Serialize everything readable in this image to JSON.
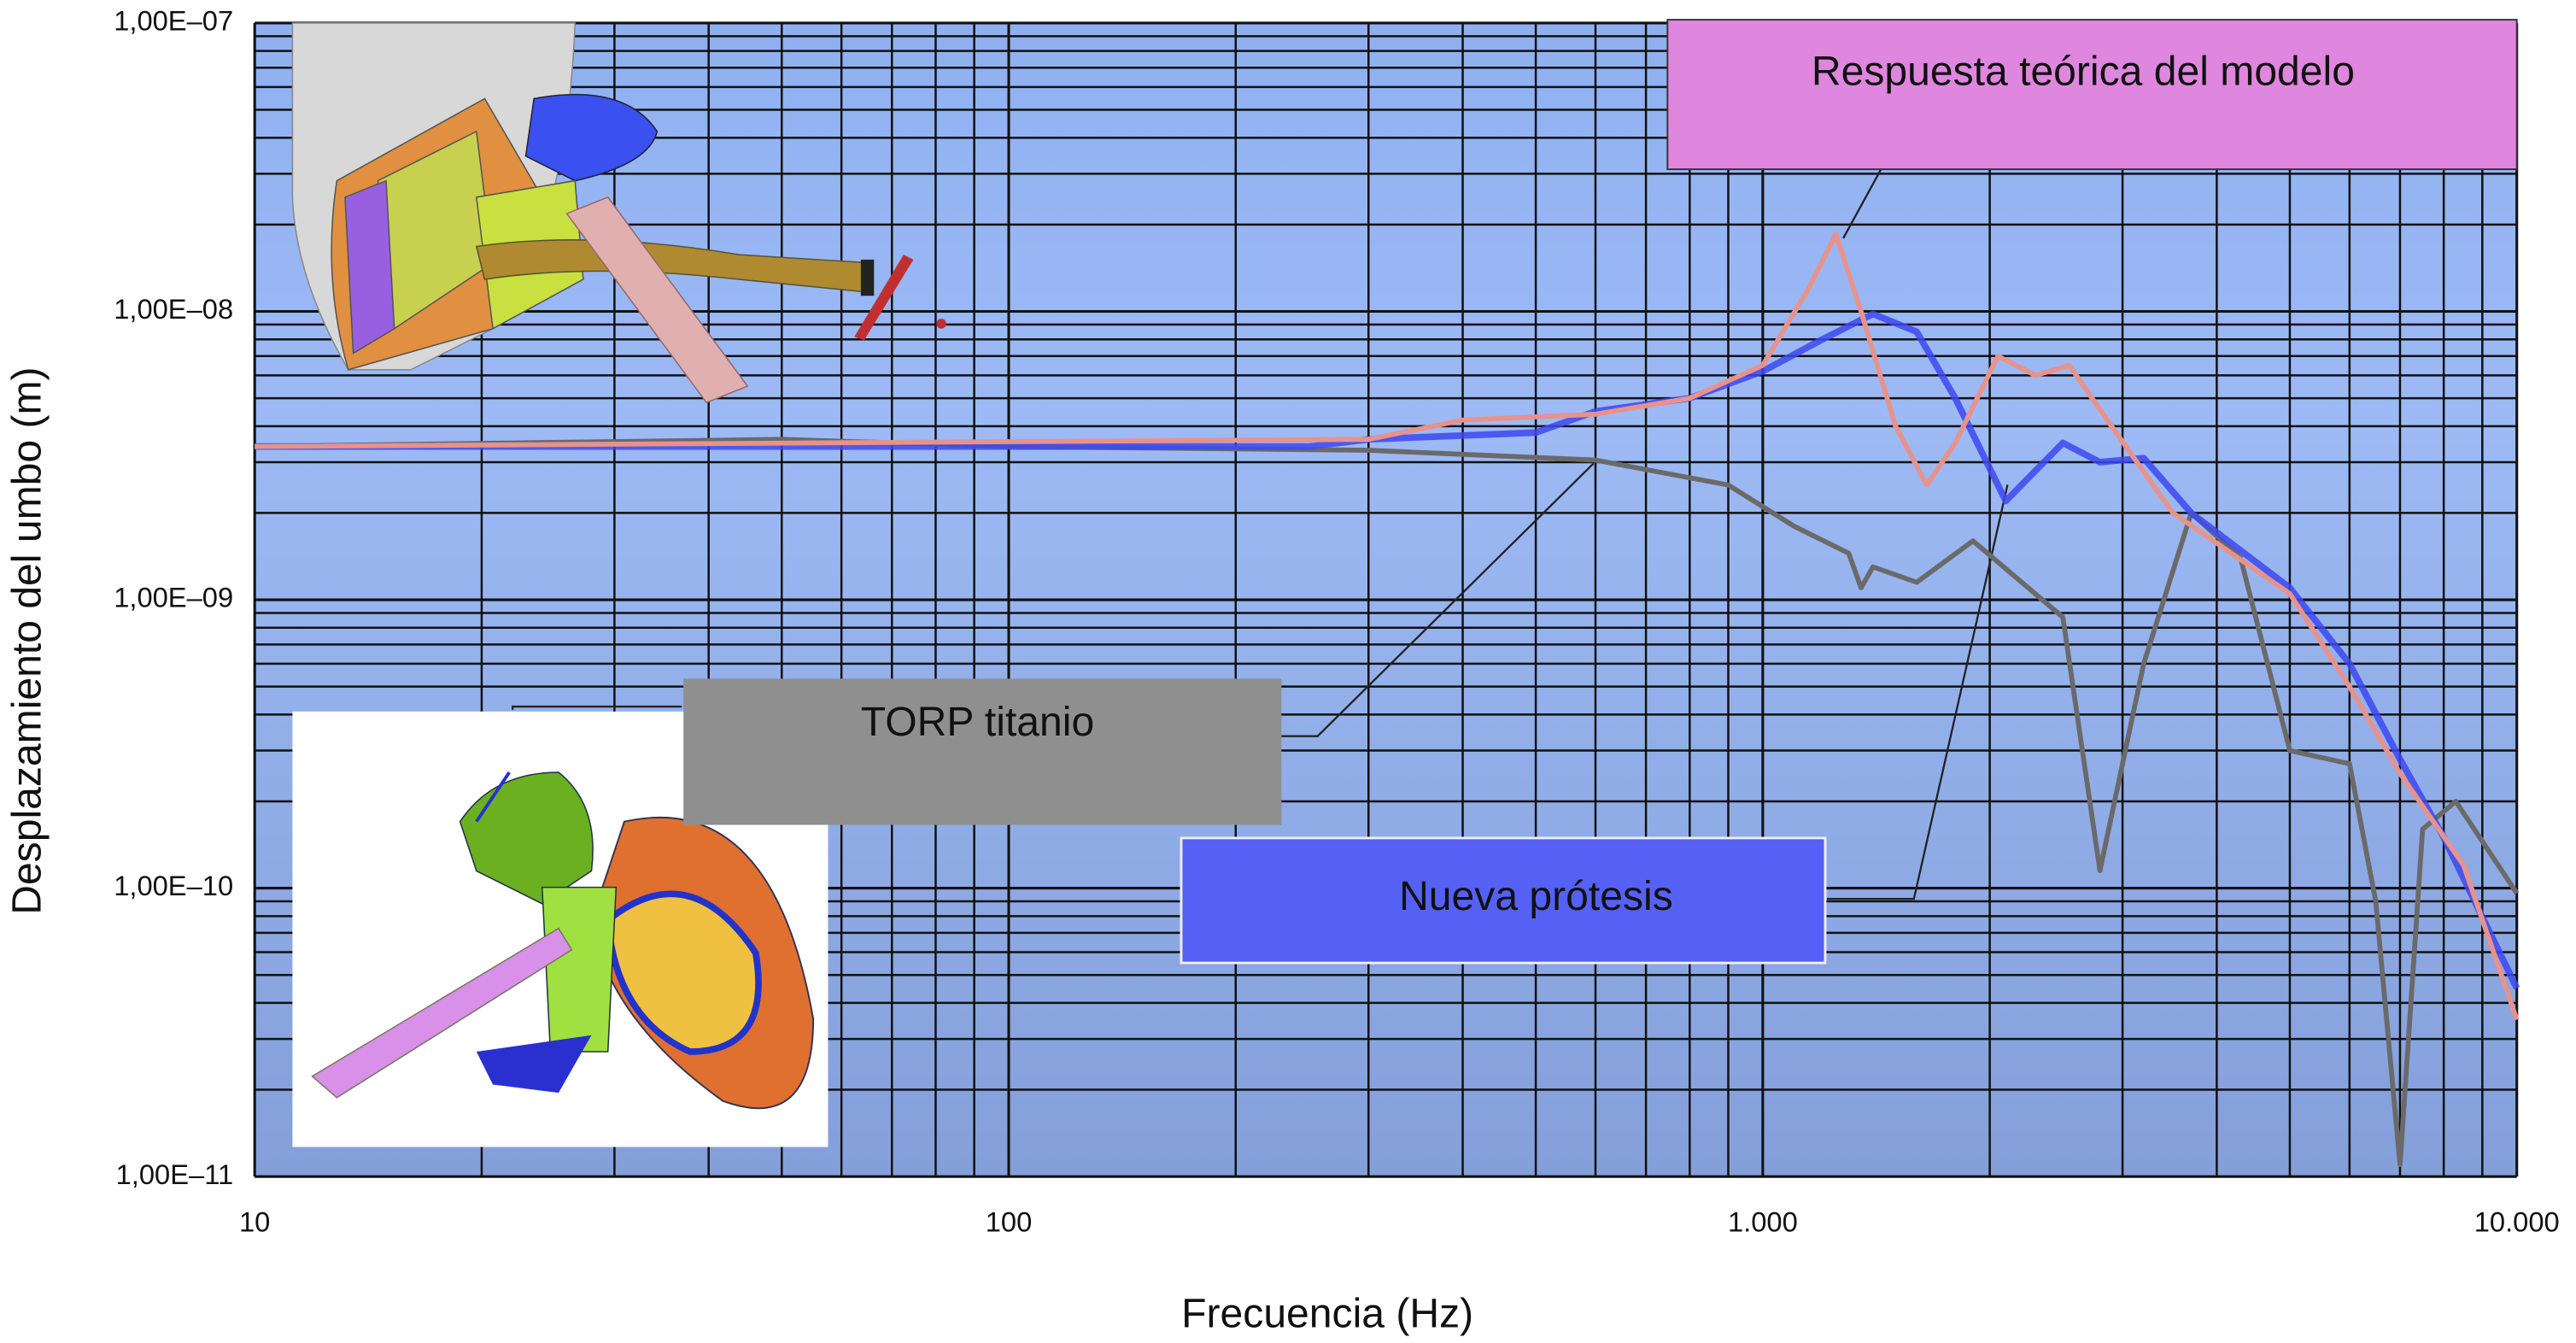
{
  "chart_data": {
    "type": "line",
    "xlabel": "Frecuencia (Hz)",
    "ylabel": "Desplazamiento del umbo (m)",
    "xscale": "log",
    "yscale": "log",
    "grid": true,
    "xlim": [
      10,
      10000
    ],
    "ylim": [
      1e-11,
      1e-07
    ],
    "xticks": [
      10,
      100,
      {
        "value": 1000,
        "label": "1.000"
      },
      {
        "value": 10000,
        "label": "10.000"
      }
    ],
    "yticks": [
      {
        "value": 1e-11,
        "label": "1,00E–11"
      },
      {
        "value": 1e-10,
        "label": "1,00E–10"
      },
      {
        "value": 1e-09,
        "label": "1,00E–09"
      },
      {
        "value": 1e-08,
        "label": "1,00E–08"
      },
      {
        "value": 1e-07,
        "label": "1,00E–07"
      }
    ],
    "series": [
      {
        "name": "Respuesta teórica del modelo",
        "color": "#e8928c",
        "box_color": "#df86df",
        "x": [
          10,
          300,
          400,
          600,
          800,
          1000,
          1150,
          1250,
          1350,
          1500,
          1650,
          1800,
          2050,
          2300,
          2550,
          2900,
          3500,
          5000,
          6000,
          7000,
          8500,
          10000
        ],
        "values": [
          3.4e-09,
          3.6e-09,
          4.2e-09,
          4.4e-09,
          5e-09,
          6.5e-09,
          1.2e-08,
          1.85e-08,
          1e-08,
          4e-09,
          2.5e-09,
          3.5e-09,
          7e-09,
          6e-09,
          6.5e-09,
          4e-09,
          2e-09,
          1.05e-09,
          5e-10,
          2.5e-10,
          1.2e-10,
          3.5e-11
        ]
      },
      {
        "name": "Nueva prótesis",
        "color": "#3d48f0",
        "box_color": "#5560f5",
        "x": [
          10,
          250,
          300,
          500,
          600,
          800,
          1000,
          1200,
          1400,
          1600,
          1800,
          2100,
          2500,
          2800,
          3200,
          3700,
          5000,
          6000,
          7000,
          8000,
          10000
        ],
        "values": [
          3.4e-09,
          3.4e-09,
          3.6e-09,
          3.8e-09,
          4.5e-09,
          5e-09,
          6.2e-09,
          8e-09,
          9.8e-09,
          8.5e-09,
          5e-09,
          2.2e-09,
          3.5e-09,
          3e-09,
          3.1e-09,
          2e-09,
          1.1e-09,
          6e-10,
          2.8e-10,
          1.5e-10,
          4.5e-11
        ]
      },
      {
        "name": "TORP titanio",
        "color": "#6a6a6a",
        "box_color": "#8f8f8f",
        "x": [
          10,
          50,
          100,
          300,
          600,
          900,
          1100,
          1300,
          1350,
          1400,
          1600,
          1900,
          2500,
          2800,
          3200,
          3700,
          4300,
          5000,
          6000,
          6500,
          7000,
          7500,
          8300,
          10000
        ],
        "values": [
          3.4e-09,
          3.6e-09,
          3.4e-09,
          3.3e-09,
          3.05e-09,
          2.5e-09,
          1.8e-09,
          1.45e-09,
          1.1e-09,
          1.3e-09,
          1.15e-09,
          1.6e-09,
          8.7e-10,
          1.15e-10,
          6e-10,
          2e-09,
          1.4e-09,
          3e-10,
          2.7e-10,
          9e-11,
          1.1e-11,
          1.6e-10,
          2e-10,
          9.6e-11
        ]
      }
    ]
  }
}
